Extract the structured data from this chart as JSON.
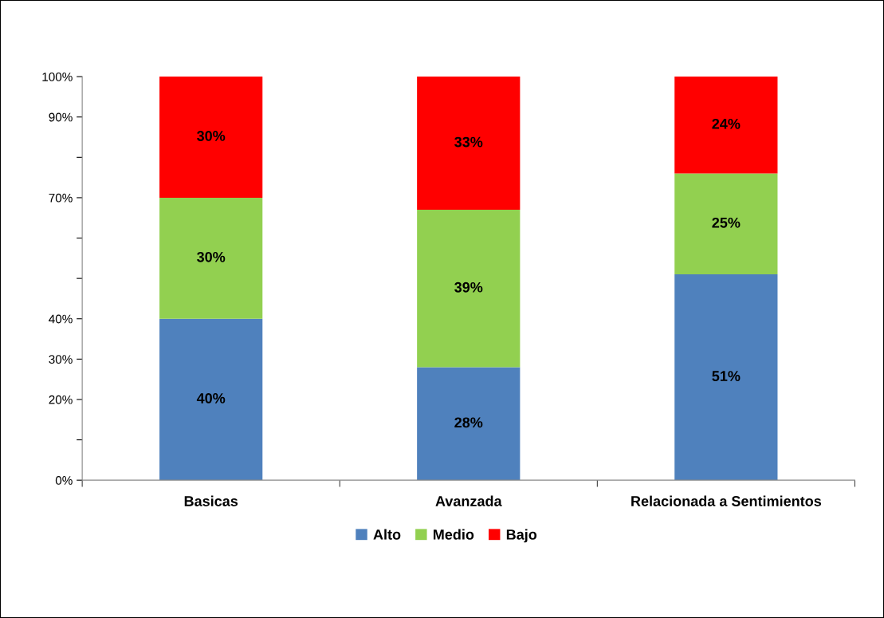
{
  "chart_data": {
    "type": "bar",
    "stacked": true,
    "categories": [
      "Basicas",
      "Avanzada",
      "Relacionada a Sentimientos"
    ],
    "series": [
      {
        "name": "Alto",
        "color": "#4f81bd",
        "values": [
          40,
          28,
          51
        ]
      },
      {
        "name": "Medio",
        "color": "#92d050",
        "values": [
          30,
          39,
          25
        ]
      },
      {
        "name": "Bajo",
        "color": "#ff0000",
        "values": [
          30,
          33,
          24
        ]
      }
    ],
    "ylim": [
      0,
      100
    ],
    "yticks": [
      {
        "value": 0,
        "label": "0%"
      },
      {
        "value": 10,
        "label": null
      },
      {
        "value": 20,
        "label": "20%"
      },
      {
        "value": 30,
        "label": "30%"
      },
      {
        "value": 40,
        "label": "40%"
      },
      {
        "value": 50,
        "label": null
      },
      {
        "value": 60,
        "label": null
      },
      {
        "value": 70,
        "label": "70%"
      },
      {
        "value": 80,
        "label": null
      },
      {
        "value": 90,
        "label": "90%"
      },
      {
        "value": 100,
        "label": "100%"
      }
    ],
    "value_labels": [
      [
        "40%",
        "28%",
        "51%"
      ],
      [
        "30%",
        "39%",
        "25%"
      ],
      [
        "30%",
        "33%",
        "24%"
      ]
    ],
    "legend": "bottom",
    "grid": false
  }
}
